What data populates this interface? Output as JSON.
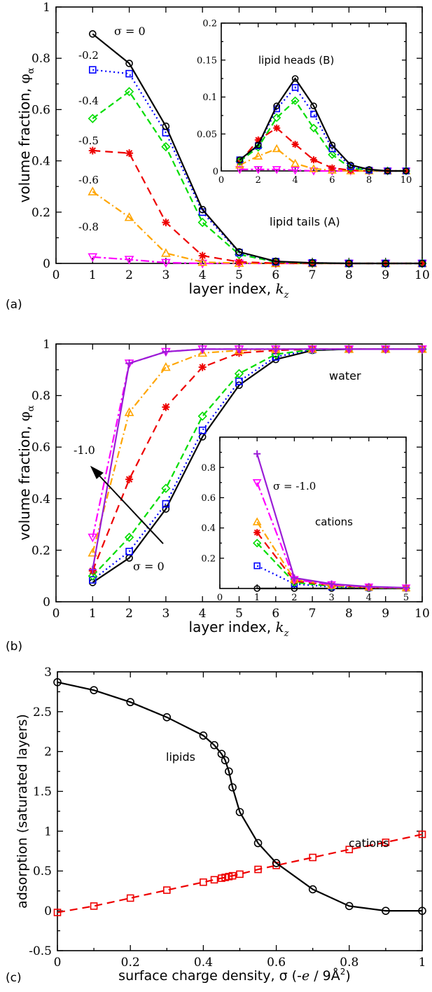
{
  "colors": {
    "black": "#000000",
    "blue": "#0000ff",
    "green": "#00dd00",
    "red": "#ee0000",
    "orange": "#ffa500",
    "magenta": "#ff00ff",
    "purple": "#9a1dd6"
  },
  "chart_data": [
    {
      "panel": "(a)",
      "type": "line",
      "xlabel": "layer index, k_z",
      "xlabel_main": "layer index, ",
      "xlabel_var": "k",
      "xlabel_sub": "z",
      "ylabel": "volume fraction, φα",
      "ylabel_main": "volume fraction, ",
      "ylabel_var": "φ",
      "ylabel_sub": "α",
      "xlim": [
        0,
        10
      ],
      "ylim": [
        0,
        1
      ],
      "xticks": [
        "0",
        "1",
        "2",
        "3",
        "4",
        "5",
        "6",
        "7",
        "8",
        "9",
        "10"
      ],
      "yticks": [
        "0",
        "0.2",
        "0.4",
        "0.6",
        "0.8",
        "1"
      ],
      "x": [
        1,
        2,
        3,
        4,
        5,
        6,
        7,
        8,
        9,
        10
      ],
      "annotations": [
        "σ = 0",
        "-0.2",
        "-0.4",
        "-0.5",
        "-0.6",
        "-0.8",
        "lipid tails (A)"
      ],
      "series": [
        {
          "label": "σ = 0",
          "values": [
            0.895,
            0.78,
            0.535,
            0.21,
            0.045,
            0.008,
            0.002,
            0,
            0,
            0
          ]
        },
        {
          "label": "-0.2",
          "values": [
            0.755,
            0.74,
            0.51,
            0.2,
            0.042,
            0.007,
            0.002,
            0,
            0,
            0
          ]
        },
        {
          "label": "-0.4",
          "values": [
            0.565,
            0.67,
            0.455,
            0.16,
            0.035,
            0.006,
            0.001,
            0,
            0,
            0
          ]
        },
        {
          "label": "-0.5",
          "values": [
            0.44,
            0.43,
            0.16,
            0.03,
            0.006,
            0.001,
            0,
            0,
            0,
            0
          ]
        },
        {
          "label": "-0.6",
          "values": [
            0.28,
            0.18,
            0.04,
            0.005,
            0.001,
            0,
            0,
            0,
            0,
            0
          ]
        },
        {
          "label": "-0.8",
          "values": [
            0.025,
            0.015,
            0.003,
            0,
            0,
            0,
            0,
            0,
            0,
            0
          ]
        }
      ],
      "inset": {
        "annotation": "lipid heads (B)",
        "xlim": [
          0,
          10
        ],
        "ylim": [
          0,
          0.2
        ],
        "xticks": [
          "0",
          "2",
          "4",
          "6",
          "8",
          "10"
        ],
        "yticks": [
          "0.05",
          "0.1",
          "0.15",
          "0.2"
        ],
        "x": [
          1,
          2,
          3,
          4,
          5,
          6,
          7,
          8,
          9,
          10
        ],
        "series": [
          {
            "values": [
              0.015,
              0.035,
              0.088,
              0.125,
              0.088,
              0.035,
              0.008,
              0.002,
              0,
              0
            ]
          },
          {
            "values": [
              0.015,
              0.034,
              0.084,
              0.113,
              0.077,
              0.03,
              0.006,
              0.001,
              0,
              0
            ]
          },
          {
            "values": [
              0.013,
              0.032,
              0.072,
              0.095,
              0.058,
              0.022,
              0.004,
              0.001,
              0,
              0
            ]
          },
          {
            "values": [
              0.012,
              0.042,
              0.058,
              0.036,
              0.015,
              0.004,
              0.001,
              0,
              0,
              0
            ]
          },
          {
            "values": [
              0.008,
              0.02,
              0.03,
              0.01,
              0.003,
              0.001,
              0,
              0,
              0,
              0
            ]
          },
          {
            "values": [
              0.002,
              0.002,
              0.002,
              0.001,
              0,
              0,
              0,
              0,
              0,
              0
            ]
          }
        ]
      }
    },
    {
      "panel": "(b)",
      "type": "line",
      "xlabel": "layer index, k_z",
      "xlabel_main": "layer index, ",
      "xlabel_var": "k",
      "xlabel_sub": "z",
      "ylabel": "volume fraction, φα",
      "ylabel_main": "volume fraction, ",
      "ylabel_var": "φ",
      "ylabel_sub": "α",
      "xlim": [
        0,
        10
      ],
      "ylim": [
        0,
        1
      ],
      "xticks": [
        "0",
        "1",
        "2",
        "3",
        "4",
        "5",
        "6",
        "7",
        "8",
        "9",
        "10"
      ],
      "yticks": [
        "0",
        "0.2",
        "0.4",
        "0.6",
        "0.8",
        "1"
      ],
      "x": [
        1,
        2,
        3,
        4,
        5,
        6,
        7,
        8,
        9,
        10
      ],
      "annotations": [
        "water",
        "-1.0",
        "σ = 0"
      ],
      "series": [
        {
          "label": "σ = 0",
          "values": [
            0.075,
            0.17,
            0.36,
            0.64,
            0.84,
            0.94,
            0.975,
            0.98,
            0.98,
            0.98
          ]
        },
        {
          "label": "-0.2",
          "values": [
            0.085,
            0.195,
            0.38,
            0.665,
            0.855,
            0.95,
            0.978,
            0.98,
            0.98,
            0.98
          ]
        },
        {
          "label": "-0.4",
          "values": [
            0.1,
            0.25,
            0.44,
            0.72,
            0.885,
            0.96,
            0.978,
            0.98,
            0.98,
            0.98
          ]
        },
        {
          "label": "-0.5",
          "values": [
            0.12,
            0.475,
            0.755,
            0.91,
            0.965,
            0.975,
            0.98,
            0.98,
            0.98,
            0.98
          ]
        },
        {
          "label": "-0.6",
          "values": [
            0.19,
            0.735,
            0.91,
            0.965,
            0.975,
            0.98,
            0.98,
            0.98,
            0.98,
            0.98
          ]
        },
        {
          "label": "-0.8",
          "values": [
            0.25,
            0.925,
            0.97,
            0.98,
            0.98,
            0.98,
            0.98,
            0.98,
            0.98,
            0.98
          ]
        },
        {
          "label": "-1.0",
          "values": [
            0.125,
            0.925,
            0.97,
            0.98,
            0.98,
            0.98,
            0.98,
            0.98,
            0.98,
            0.98
          ]
        }
      ],
      "inset": {
        "annotation_sigma": "σ = -1.0",
        "annotation": "cations",
        "xlim": [
          0,
          5
        ],
        "ylim": [
          0,
          1
        ],
        "xticks": [
          "0",
          "1",
          "2",
          "3",
          "4",
          "5"
        ],
        "yticks": [
          "0.2",
          "0.4",
          "0.6",
          "0.8"
        ],
        "x": [
          1,
          2,
          3,
          4,
          5
        ],
        "series": [
          {
            "values": [
              0.0,
              0.0,
              0.0,
              0.0,
              0.0
            ]
          },
          {
            "values": [
              0.15,
              0.03,
              0.01,
              0.005,
              0.002
            ]
          },
          {
            "values": [
              0.3,
              0.04,
              0.015,
              0.006,
              0.002
            ]
          },
          {
            "values": [
              0.37,
              0.05,
              0.02,
              0.007,
              0.003
            ]
          },
          {
            "values": [
              0.44,
              0.06,
              0.02,
              0.008,
              0.003
            ]
          },
          {
            "values": [
              0.7,
              0.06,
              0.025,
              0.01,
              0.004
            ]
          },
          {
            "values": [
              0.89,
              0.07,
              0.03,
              0.012,
              0.005
            ]
          }
        ]
      }
    },
    {
      "panel": "(c)",
      "type": "line",
      "xlabel": "surface charge density, σ (-e / 9Å²)",
      "xlabel_main": "surface charge density, σ (-",
      "xlabel_var": "e",
      "xlabel_tail": " / 9Å",
      "xlabel_sup": "2",
      "xlabel_close": ")",
      "ylabel": "adsorption (saturated layers)",
      "xlim": [
        0,
        1
      ],
      "ylim": [
        -0.5,
        3
      ],
      "xticks": [
        "0",
        "0.2",
        "0.4",
        "0.6",
        "0.8",
        "1"
      ],
      "yticks": [
        "-0.5",
        "0",
        "0.5",
        "1",
        "1.5",
        "2",
        "2.5",
        "3"
      ],
      "annotations": [
        "lipids",
        "cations"
      ],
      "series": [
        {
          "name": "lipids",
          "x": [
            0,
            0.1,
            0.2,
            0.3,
            0.4,
            0.43,
            0.45,
            0.46,
            0.47,
            0.48,
            0.5,
            0.55,
            0.6,
            0.7,
            0.8,
            0.9,
            1.0
          ],
          "y": [
            2.87,
            2.77,
            2.62,
            2.43,
            2.2,
            2.08,
            1.97,
            1.89,
            1.75,
            1.55,
            1.24,
            0.85,
            0.6,
            0.27,
            0.06,
            0.0,
            0.0
          ]
        },
        {
          "name": "cations",
          "x": [
            0,
            0.1,
            0.2,
            0.3,
            0.4,
            0.43,
            0.45,
            0.46,
            0.47,
            0.48,
            0.5,
            0.55,
            0.6,
            0.7,
            0.8,
            0.9,
            1.0
          ],
          "y": [
            -0.02,
            0.06,
            0.16,
            0.26,
            0.36,
            0.39,
            0.41,
            0.42,
            0.43,
            0.44,
            0.46,
            0.52,
            0.57,
            0.67,
            0.77,
            0.86,
            0.96
          ]
        }
      ]
    }
  ]
}
